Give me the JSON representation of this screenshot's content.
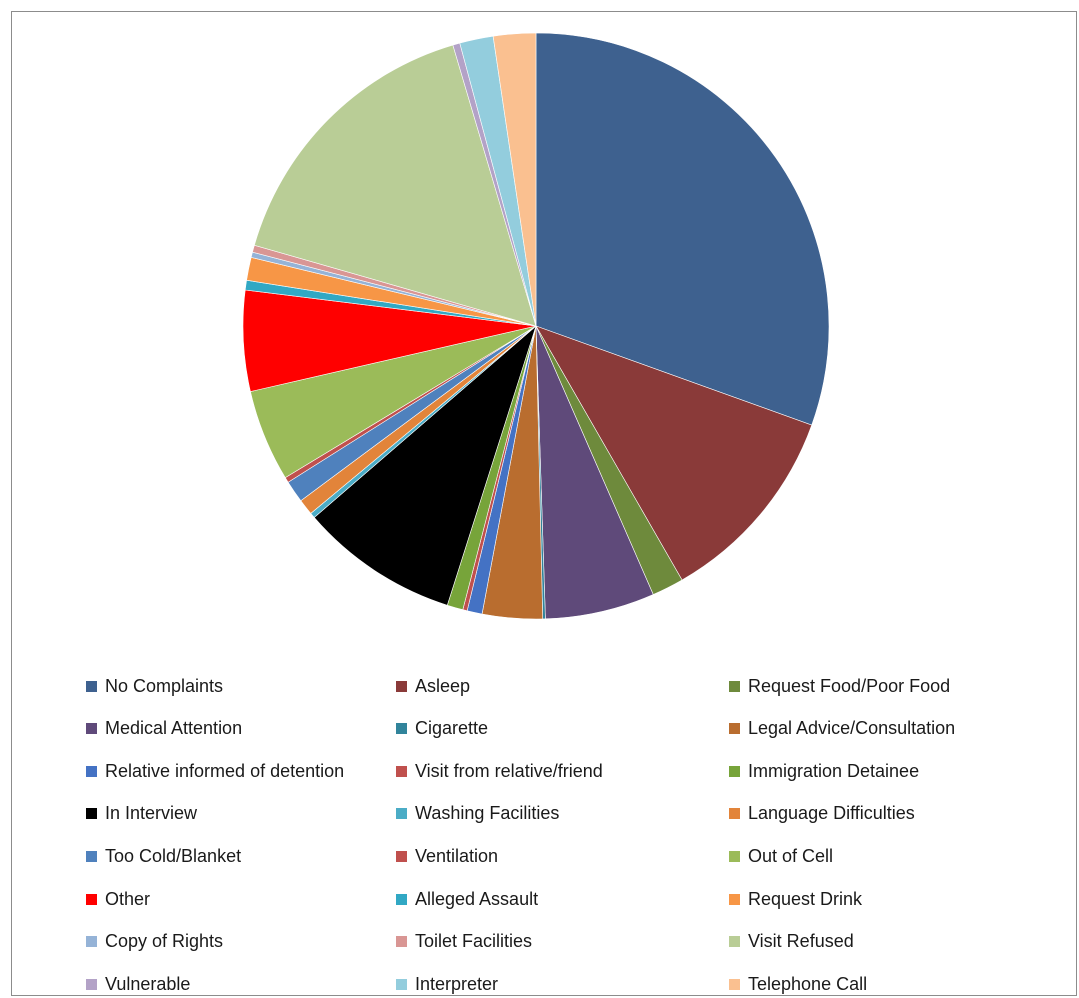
{
  "chart_data": {
    "type": "pie",
    "title": "",
    "legend_position": "bottom",
    "slices": [
      {
        "label": "No Complaints",
        "value": 31.3,
        "color": "#3E618F"
      },
      {
        "label": "Asleep",
        "value": 11.5,
        "color": "#8A3A39"
      },
      {
        "label": "Request Food/Poor Food",
        "value": 1.8,
        "color": "#6E8A3C"
      },
      {
        "label": "Medical Attention",
        "value": 6.2,
        "color": "#5F4A7A"
      },
      {
        "label": "Cigarette",
        "value": 0.15,
        "color": "#31849B"
      },
      {
        "label": "Legal Advice/Consultation",
        "value": 3.4,
        "color": "#B96D2F"
      },
      {
        "label": "Relative informed of detention",
        "value": 0.85,
        "color": "#4472C4"
      },
      {
        "label": "Visit from relative/friend",
        "value": 0.25,
        "color": "#C0504D"
      },
      {
        "label": "Immigration Detainee",
        "value": 0.9,
        "color": "#77A43A"
      },
      {
        "label": "In Interview",
        "value": 9.0,
        "color": "#000000"
      },
      {
        "label": "Washing Facilities",
        "value": 0.3,
        "color": "#4BACC6"
      },
      {
        "label": "Language Difficulties",
        "value": 0.9,
        "color": "#E2843A"
      },
      {
        "label": "Too Cold/Blanket",
        "value": 1.25,
        "color": "#4F81BD"
      },
      {
        "label": "Ventilation",
        "value": 0.3,
        "color": "#C0504D"
      },
      {
        "label": "Out of Cell",
        "value": 5.2,
        "color": "#9BBB59"
      },
      {
        "label": "Other",
        "value": 5.7,
        "color": "#FF0000"
      },
      {
        "label": "Alleged Assault",
        "value": 0.55,
        "color": "#31A8C4"
      },
      {
        "label": "Request Drink",
        "value": 1.3,
        "color": "#F79646"
      },
      {
        "label": "Copy of Rights",
        "value": 0.3,
        "color": "#95B3D7"
      },
      {
        "label": "Toilet Facilities",
        "value": 0.4,
        "color": "#D99694"
      },
      {
        "label": "Visit Refused",
        "value": 16.4,
        "color": "#B9CD96"
      },
      {
        "label": "Vulnerable",
        "value": 0.4,
        "color": "#B3A2C7"
      },
      {
        "label": "Interpreter",
        "value": 1.9,
        "color": "#93CDDD"
      },
      {
        "label": "Telephone Call",
        "value": 2.4,
        "color": "#FAC090"
      }
    ]
  }
}
